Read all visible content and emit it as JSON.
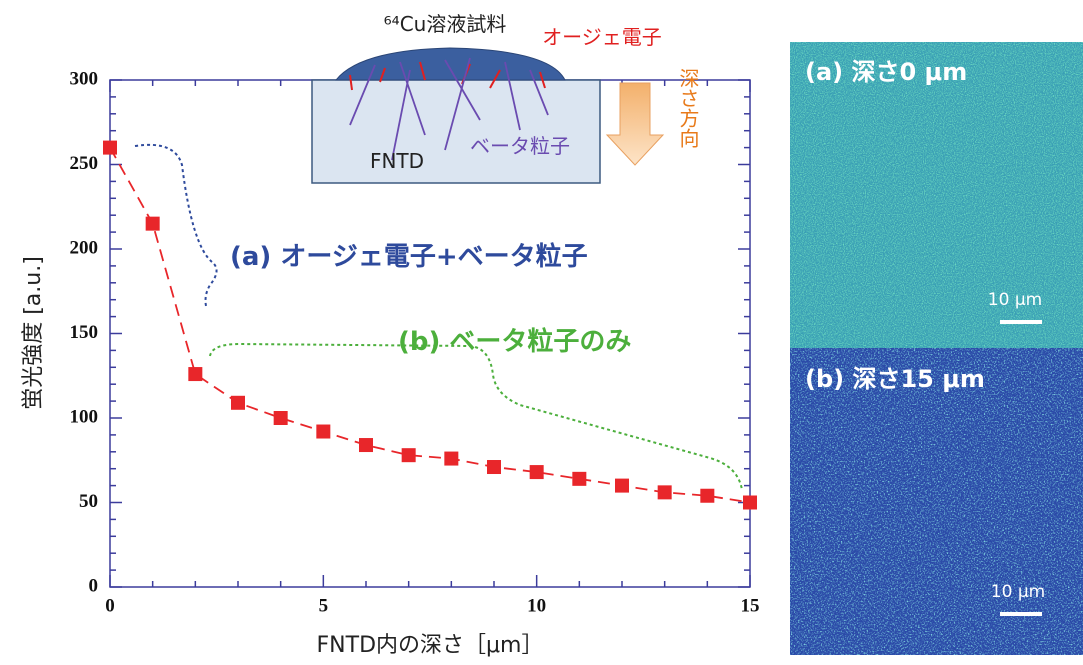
{
  "chart_data": {
    "type": "line",
    "x_label": "FNTD内の深さ［μm］",
    "y_label": "蛍光強度 [a.u.]",
    "x": [
      0,
      1,
      2,
      3,
      4,
      5,
      6,
      7,
      8,
      9,
      10,
      11,
      12,
      13,
      14,
      15
    ],
    "series": [
      {
        "color": "#e8262a",
        "values": [
          260,
          215,
          126,
          109,
          100,
          92,
          84,
          78,
          76,
          71,
          68,
          64,
          60,
          56,
          54,
          50
        ]
      }
    ],
    "xlim": [
      0,
      15
    ],
    "ylim": [
      0,
      300
    ],
    "xticks": [
      0,
      5,
      10,
      15
    ],
    "yticks": [
      0,
      50,
      100,
      150,
      200,
      250,
      300
    ],
    "x_minor_ticks": [
      1,
      2,
      3,
      4,
      6,
      7,
      8,
      9,
      11,
      12,
      13,
      14
    ],
    "y_minor_ticks": [
      10,
      20,
      30,
      40,
      60,
      70,
      80,
      90,
      110,
      120,
      130,
      140,
      160,
      170,
      180,
      190,
      210,
      220,
      230,
      240,
      260,
      270,
      280,
      290
    ],
    "annotations": [
      "(a) オージェ電子+ベータ粒子",
      "(b) ベータ粒子のみ"
    ]
  },
  "diagram": {
    "sample": "⁶⁴Cu溶液試料",
    "auger": "オージェ電子",
    "beta": "ベータ粒子",
    "detector": "FNTD",
    "depth_direction": "深さ方向"
  },
  "images": [
    {
      "label": "(a) 深さ0 μm",
      "scale": "10 μm"
    },
    {
      "label": "(b) 深さ15 μm",
      "scale": "10 μm"
    }
  ]
}
